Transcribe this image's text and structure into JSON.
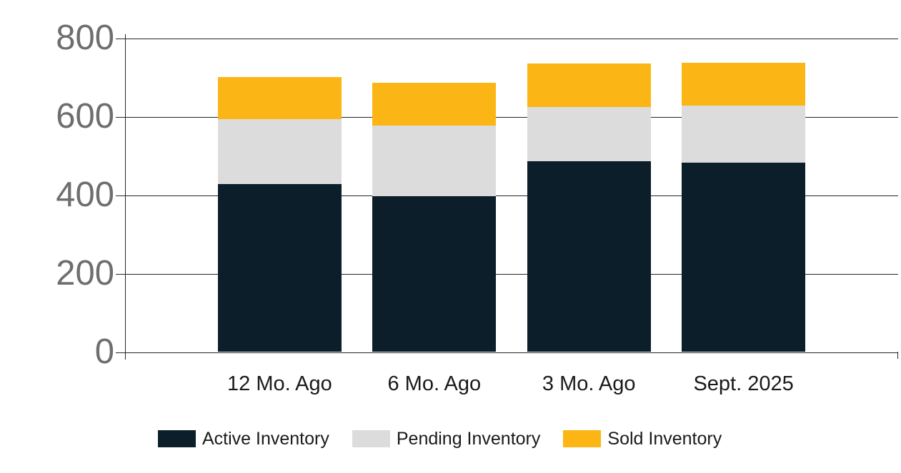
{
  "colors": {
    "active": "#0b1e2a",
    "pending": "#dcdcdc",
    "sold": "#fbb615",
    "grid": "#262626",
    "y_label": "#6e6e6e",
    "x_label": "#1a1a1a"
  },
  "chart_data": {
    "type": "bar",
    "stacked": true,
    "title": "",
    "xlabel": "",
    "ylabel": "",
    "categories": [
      "12 Mo. Ago",
      "6 Mo. Ago",
      "3 Mo. Ago",
      "Sept. 2025"
    ],
    "series": [
      {
        "name": "Active Inventory",
        "color_key": "active",
        "values": [
          428,
          396,
          485,
          482
        ]
      },
      {
        "name": "Pending Inventory",
        "color_key": "pending",
        "values": [
          165,
          180,
          139,
          145
        ]
      },
      {
        "name": "Sold Inventory",
        "color_key": "sold",
        "values": [
          107,
          110,
          111,
          109
        ]
      }
    ],
    "y_ticks": [
      0,
      200,
      400,
      600,
      800
    ],
    "ylim": [
      0,
      800
    ],
    "grid": true,
    "legend_position": "bottom"
  }
}
